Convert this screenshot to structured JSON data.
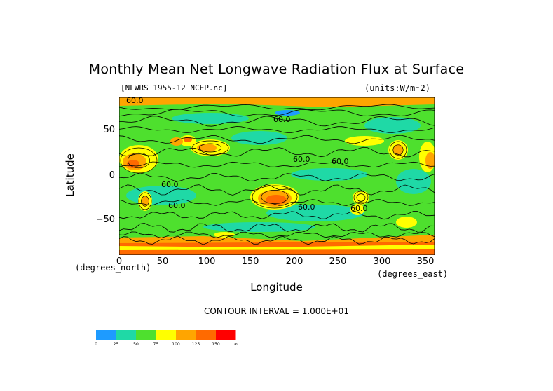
{
  "title": "Monthly Mean Net Longwave Radiation Flux at Surface",
  "file_label": "[NLWRS_1955-12_NCEP.nc]",
  "units_label": "(units:W/m⁻2)",
  "axes": {
    "ylabel": "Latitude",
    "xlabel": "Longitude",
    "y_unit": "(degrees_north)",
    "x_unit": "(degrees_east)",
    "yticks": [
      "50",
      "0",
      "−50"
    ],
    "xticks": [
      "0",
      "50",
      "100",
      "150",
      "200",
      "250",
      "300",
      "350"
    ]
  },
  "contour_interval": "CONTOUR INTERVAL = 1.000E+01",
  "contour_labels": [
    "60.0",
    "60.0",
    "60.0",
    "60.0",
    "60.0",
    "60.0",
    "60.0",
    "60.0"
  ],
  "legend": {
    "labels": [
      "0",
      "25",
      "50",
      "75",
      "100",
      "125",
      "150",
      "∞"
    ],
    "colors": [
      "#1e9bff",
      "#1fd9a6",
      "#4ee02e",
      "#ffff00",
      "#ffa500",
      "#ff6a00",
      "#ff0000"
    ]
  },
  "chart_data": {
    "type": "heatmap",
    "title": "Monthly Mean Net Longwave Radiation Flux at Surface",
    "xlabel": "Longitude",
    "ylabel": "Latitude",
    "xlim": [
      0,
      360
    ],
    "ylim": [
      -90,
      90
    ],
    "levels": [
      0,
      25,
      50,
      75,
      100,
      125,
      150
    ],
    "units": "W/m^-2"
  }
}
